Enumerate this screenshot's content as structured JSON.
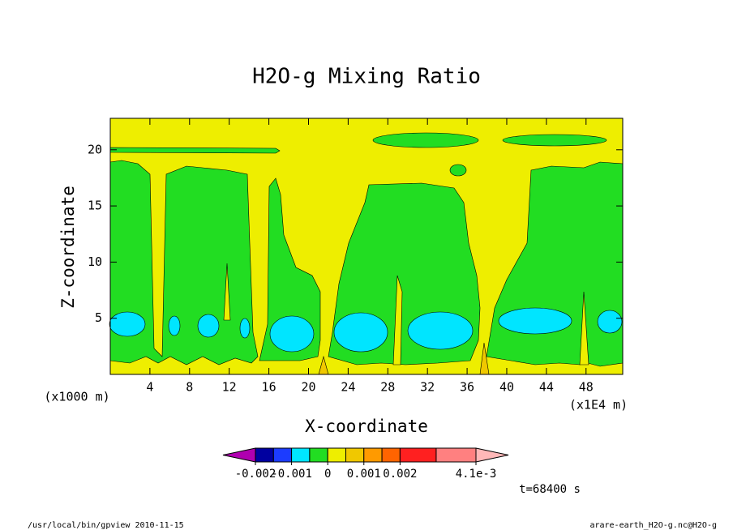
{
  "chart_data": {
    "type": "contour",
    "title": "H2O-g Mixing Ratio",
    "x_label": "X-coordinate",
    "y_label": "Z-coordinate",
    "x_unit_label": "(x1E4 m)",
    "y_unit_label": "(x1000 m)",
    "xlim": [
      0,
      51.7
    ],
    "xticks": [
      4,
      8,
      12,
      16,
      20,
      24,
      28,
      32,
      36,
      40,
      44,
      48
    ],
    "ylim": [
      0,
      22.8
    ],
    "yticks": [
      5,
      10,
      15,
      20
    ],
    "colorbar": {
      "levels": [
        -0.002,
        -0.0015,
        -0.001,
        -0.0005,
        0,
        0.0005,
        0.001,
        0.0015,
        0.002,
        0.003,
        0.0041
      ],
      "colors": [
        "#b000b0",
        "#0000a0",
        "#1c3cff",
        "#00e5ff",
        "#22dd22",
        "#eeee00",
        "#f0c800",
        "#ff9a00",
        "#ff6400",
        "#ff2020",
        "#ff8080",
        "#ffb8b8"
      ],
      "ticks": [
        -0.002,
        -0.001,
        0,
        0.001,
        0.002,
        {
          "value": 0.0041,
          "label": "4.1e-3"
        }
      ]
    },
    "time_label": "t=68400 s"
  },
  "footer": {
    "left": "/usr/local/bin/gpview  2010-11-15",
    "right": "arare-earth_H2O-g.nc@H2O-g"
  }
}
